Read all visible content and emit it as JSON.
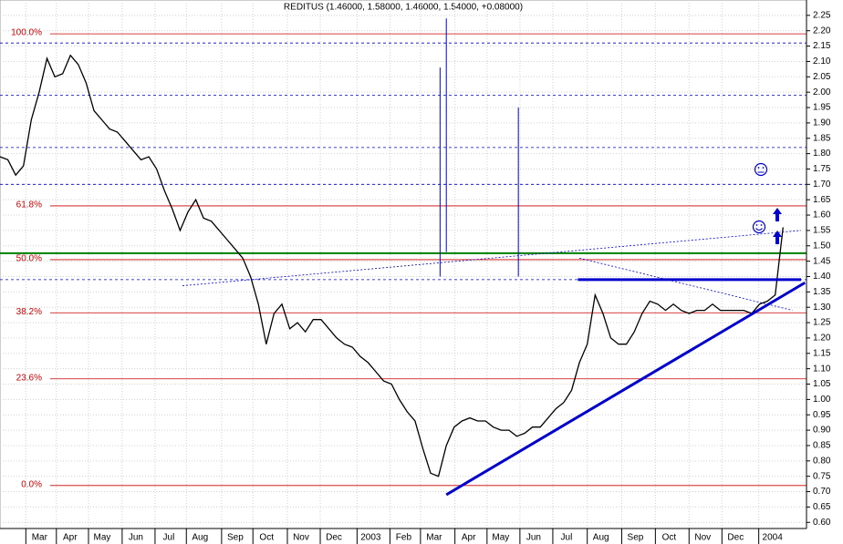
{
  "chart_data": {
    "type": "line",
    "title": "REDITUS (1.46000, 1.58000, 1.46000, 1.54000, +0.08000)",
    "color": "#000000",
    "x": [
      0,
      1,
      2,
      3,
      4,
      5,
      6,
      7,
      8,
      9,
      10,
      11,
      12,
      13,
      14,
      15,
      16,
      17,
      18,
      19,
      20,
      21,
      22,
      23,
      24,
      25,
      26,
      27,
      28,
      29,
      30,
      31,
      32,
      33,
      34,
      35,
      36,
      37,
      38,
      39,
      40,
      41,
      42,
      43,
      44,
      45,
      46,
      47,
      48,
      49,
      50,
      51,
      52,
      53,
      54,
      55,
      56,
      57,
      58,
      59,
      60,
      61,
      62,
      63,
      64,
      65,
      66,
      67,
      68,
      69,
      70,
      71,
      72,
      73,
      74,
      75,
      76,
      77,
      78,
      79,
      80,
      81,
      82,
      83,
      84,
      85,
      86,
      87,
      88,
      89,
      90,
      91,
      92,
      93,
      94,
      95,
      96,
      97,
      98,
      99,
      100
    ],
    "values": [
      1.79,
      1.78,
      1.73,
      1.76,
      1.91,
      2.0,
      2.11,
      2.05,
      2.06,
      2.12,
      2.09,
      2.03,
      1.94,
      1.91,
      1.88,
      1.87,
      1.84,
      1.81,
      1.78,
      1.79,
      1.75,
      1.68,
      1.62,
      1.55,
      1.61,
      1.65,
      1.59,
      1.58,
      1.55,
      1.52,
      1.49,
      1.46,
      1.4,
      1.31,
      1.18,
      1.28,
      1.31,
      1.23,
      1.25,
      1.22,
      1.26,
      1.26,
      1.23,
      1.2,
      1.18,
      1.17,
      1.14,
      1.12,
      1.09,
      1.06,
      1.05,
      1.0,
      0.96,
      0.93,
      0.84,
      0.76,
      0.75,
      0.85,
      0.91,
      0.93,
      0.94,
      0.93,
      0.93,
      0.91,
      0.9,
      0.9,
      0.88,
      0.89,
      0.91,
      0.91,
      0.94,
      0.97,
      0.99,
      1.03,
      1.12,
      1.18,
      1.34,
      1.28,
      1.2,
      1.18,
      1.18,
      1.22,
      1.28,
      1.32,
      1.31,
      1.29,
      1.31,
      1.29,
      1.28,
      1.29,
      1.29,
      1.31,
      1.29,
      1.29,
      1.29,
      1.29,
      1.28,
      1.31,
      1.32,
      1.34,
      1.56
    ],
    "xlim": [
      0,
      103
    ],
    "xticks": [
      {
        "value": 3.3,
        "label": "Mar"
      },
      {
        "value": 7.2,
        "label": "Apr"
      },
      {
        "value": 11.3,
        "label": "May"
      },
      {
        "value": 15.6,
        "label": "Jun"
      },
      {
        "value": 19.8,
        "label": "Jul"
      },
      {
        "value": 23.8,
        "label": "Aug"
      },
      {
        "value": 28.3,
        "label": "Sep"
      },
      {
        "value": 32.3,
        "label": "Oct"
      },
      {
        "value": 36.7,
        "label": "Nov"
      },
      {
        "value": 40.9,
        "label": "Dec"
      },
      {
        "value": 45.6,
        "label": "2003"
      },
      {
        "value": 49.8,
        "label": "Feb"
      },
      {
        "value": 53.7,
        "label": "Mar"
      },
      {
        "value": 58.1,
        "label": "Apr"
      },
      {
        "value": 62.2,
        "label": "May"
      },
      {
        "value": 66.4,
        "label": "Jun"
      },
      {
        "value": 70.6,
        "label": "Jul"
      },
      {
        "value": 75,
        "label": "Aug"
      },
      {
        "value": 79.4,
        "label": "Sep"
      },
      {
        "value": 83.7,
        "label": "Oct"
      },
      {
        "value": 88,
        "label": "Nov"
      },
      {
        "value": 92.2,
        "label": "Dec"
      },
      {
        "value": 96.9,
        "label": "2004"
      }
    ],
    "ylim": [
      0.58,
      2.3
    ],
    "yticks": [
      {
        "value": 0.6,
        "label": "0.60"
      },
      0.65,
      {
        "value": 0.7,
        "label": "0.70"
      },
      0.75,
      {
        "value": 0.8,
        "label": "0.80"
      },
      0.85,
      {
        "value": 0.9,
        "label": "0.90"
      },
      0.95,
      {
        "value": 1,
        "label": "1.00"
      },
      1.05,
      {
        "value": 1.1,
        "label": "1.10"
      },
      1.15,
      {
        "value": 1.2,
        "label": "1.20"
      },
      1.25,
      {
        "value": 1.3,
        "label": "1.30"
      },
      1.35,
      {
        "value": 1.4,
        "label": "1.40"
      },
      1.45,
      {
        "value": 1.5,
        "label": "1.50"
      },
      1.55,
      {
        "value": 1.6,
        "label": "1.60"
      },
      1.65,
      {
        "value": 1.7,
        "label": "1.70"
      },
      1.75,
      {
        "value": 1.8,
        "label": "1.80"
      },
      1.85,
      {
        "value": 1.9,
        "label": "1.90"
      },
      1.95,
      {
        "value": 2,
        "label": "2.00"
      },
      2.05,
      {
        "value": 2.1,
        "label": "2.10"
      },
      2.15,
      {
        "value": 2.2,
        "label": "2.20"
      },
      2.25
    ],
    "grid": true,
    "fib_color": "#cc0000",
    "fib_levels": [
      {
        "label": "100.0%",
        "value": 2.19
      },
      {
        "label": "61.8%",
        "value": 1.63
      },
      {
        "label": "50.0%",
        "value": 1.455
      },
      {
        "label": "38.2%",
        "value": 1.282
      },
      {
        "label": "23.6%",
        "value": 1.067
      },
      {
        "label": "0.0%",
        "value": 0.72
      }
    ],
    "hline_color": "#0000cc",
    "hlines": [
      2.16,
      1.99,
      1.82,
      1.7,
      1.39
    ],
    "green_line": {
      "value": 1.476,
      "color": "#008000"
    },
    "trendlines": [
      {
        "x": [
          57,
          102.8
        ],
        "y": [
          0.69,
          1.38
        ],
        "width": 3
      },
      {
        "x": [
          73.8,
          102.3
        ],
        "y": [
          1.39,
          1.39
        ],
        "width": 3
      },
      {
        "x": [
          23.3,
          102.3
        ],
        "y": [
          1.37,
          1.55
        ],
        "width": 0.8
      },
      {
        "x": [
          74,
          101.2
        ],
        "y": [
          1.46,
          1.29
        ],
        "width": 0.8
      },
      {
        "x": [
          56.2,
          56.2
        ],
        "y": [
          2.08,
          1.4
        ],
        "width": 1
      },
      {
        "x": [
          57,
          57
        ],
        "y": [
          2.24,
          1.48
        ],
        "width": 1
      },
      {
        "x": [
          66.2,
          66.2
        ],
        "y": [
          1.95,
          1.4
        ],
        "width": 1
      }
    ]
  }
}
